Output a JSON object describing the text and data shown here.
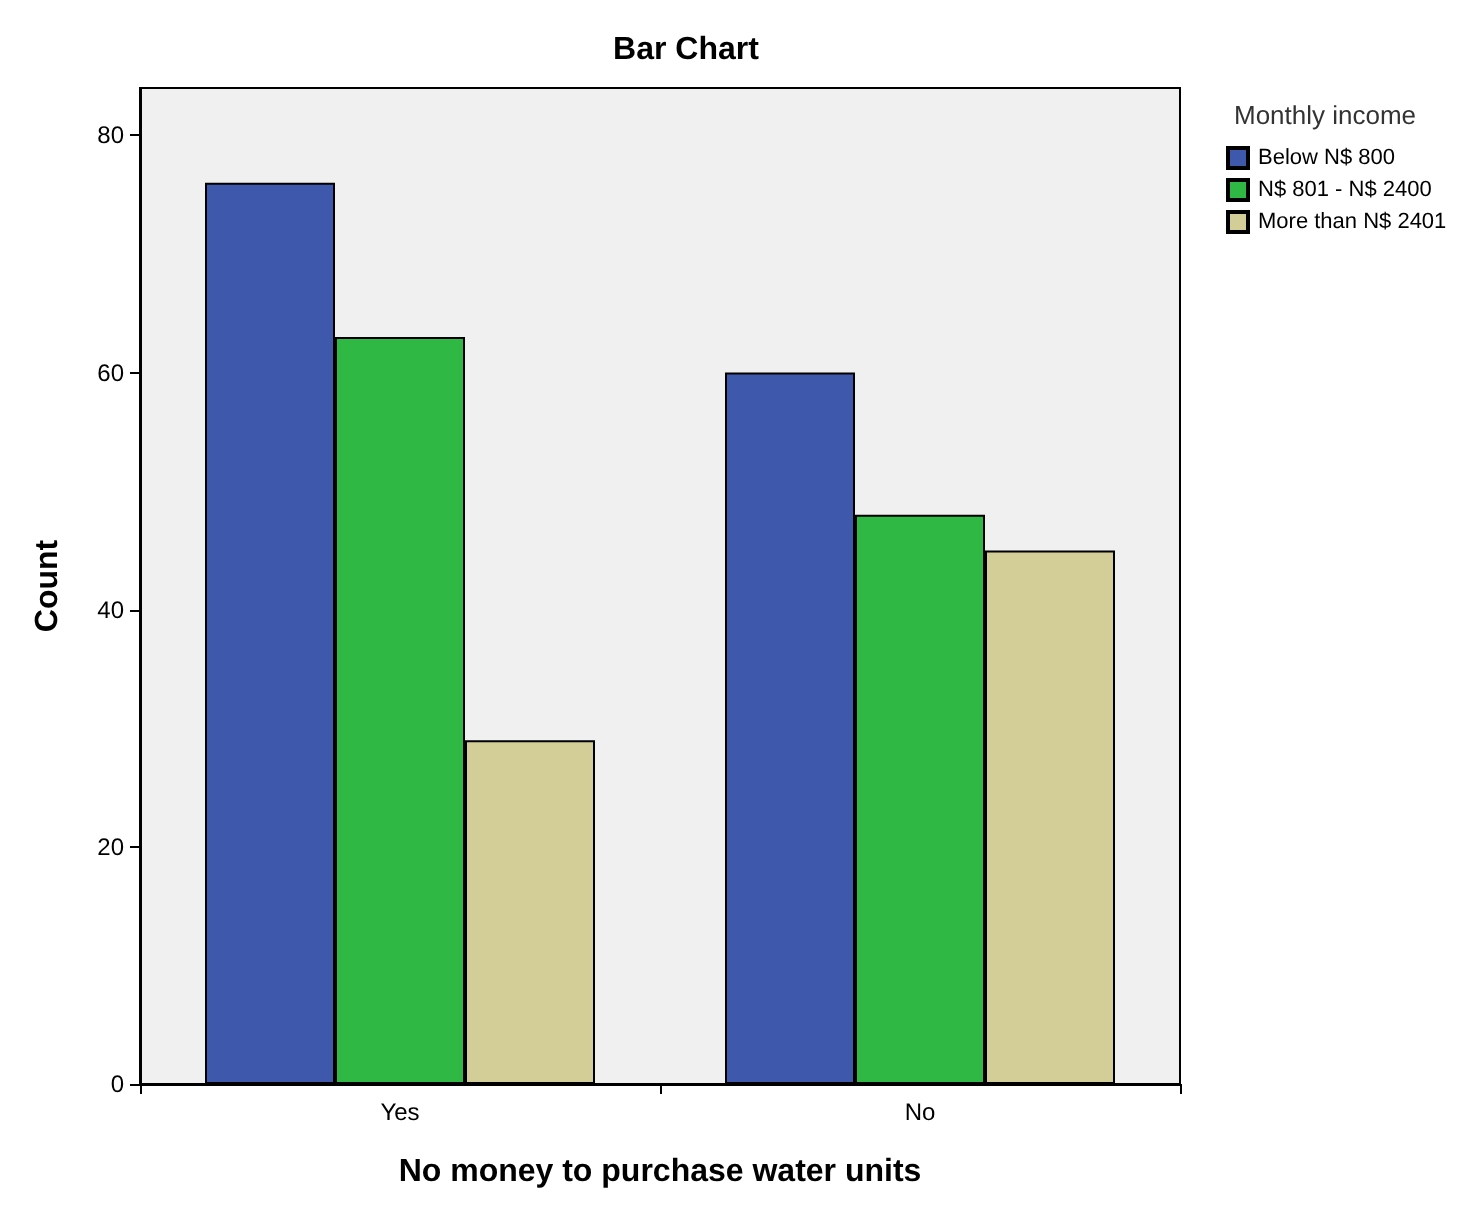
{
  "chart_data": {
    "type": "bar",
    "title": "Bar Chart",
    "xlabel": "No money to purchase water units",
    "ylabel": "Count",
    "legend_title": "Monthly income",
    "categories": [
      "Yes",
      "No"
    ],
    "series": [
      {
        "name": "Below N$ 800",
        "color": "#3e58ac",
        "values": [
          76,
          60
        ]
      },
      {
        "name": "N$ 801 - N$ 2400",
        "color": "#2fb844",
        "values": [
          63,
          48
        ]
      },
      {
        "name": "More than N$ 2401",
        "color": "#d3ce97",
        "values": [
          29,
          45
        ]
      }
    ],
    "ylim": [
      0,
      84
    ],
    "yticks": [
      0,
      20,
      40,
      60,
      80
    ],
    "grid": false,
    "legend": "right"
  }
}
